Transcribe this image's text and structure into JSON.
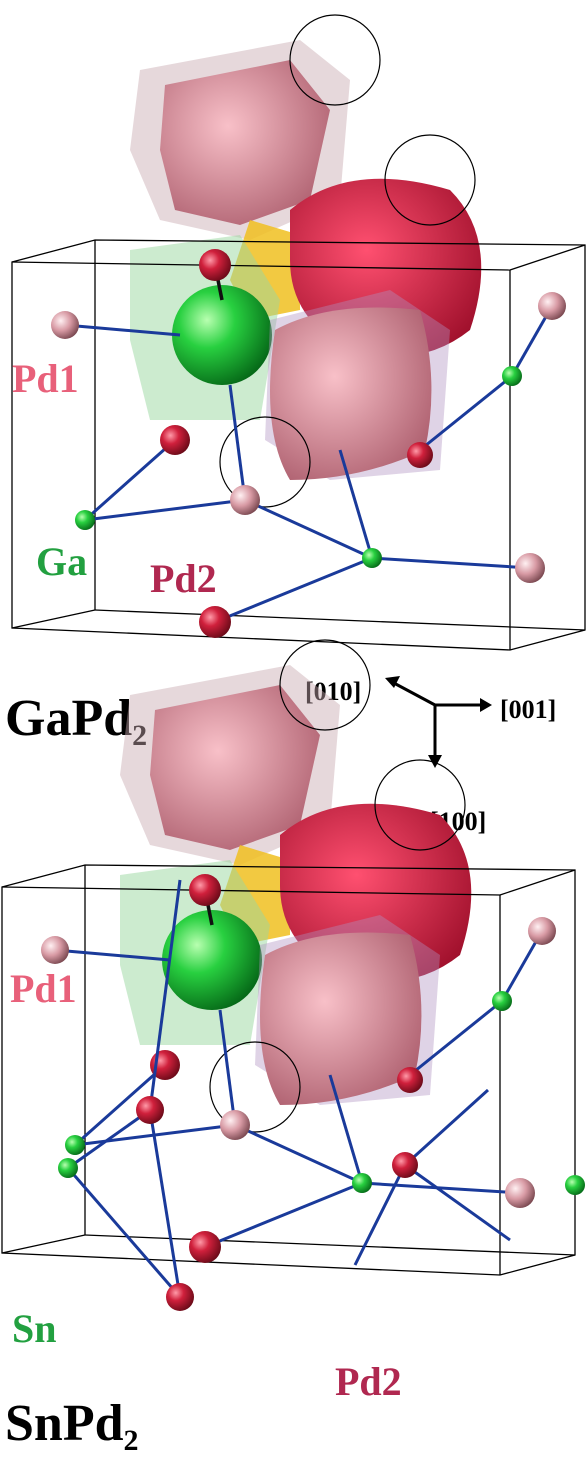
{
  "panels": [
    {
      "compound": {
        "base": "GaPd",
        "subscript": "2"
      },
      "labels": {
        "pd1": "Pd1",
        "x": "Ga",
        "pd2": "Pd2"
      }
    },
    {
      "compound": {
        "base": "SnPd",
        "subscript": "2"
      },
      "labels": {
        "pd1": "Pd1",
        "x": "Sn",
        "pd2": "Pd2"
      }
    }
  ],
  "axes": {
    "up": "[010]",
    "right": "[001]",
    "down": "[100]"
  }
}
